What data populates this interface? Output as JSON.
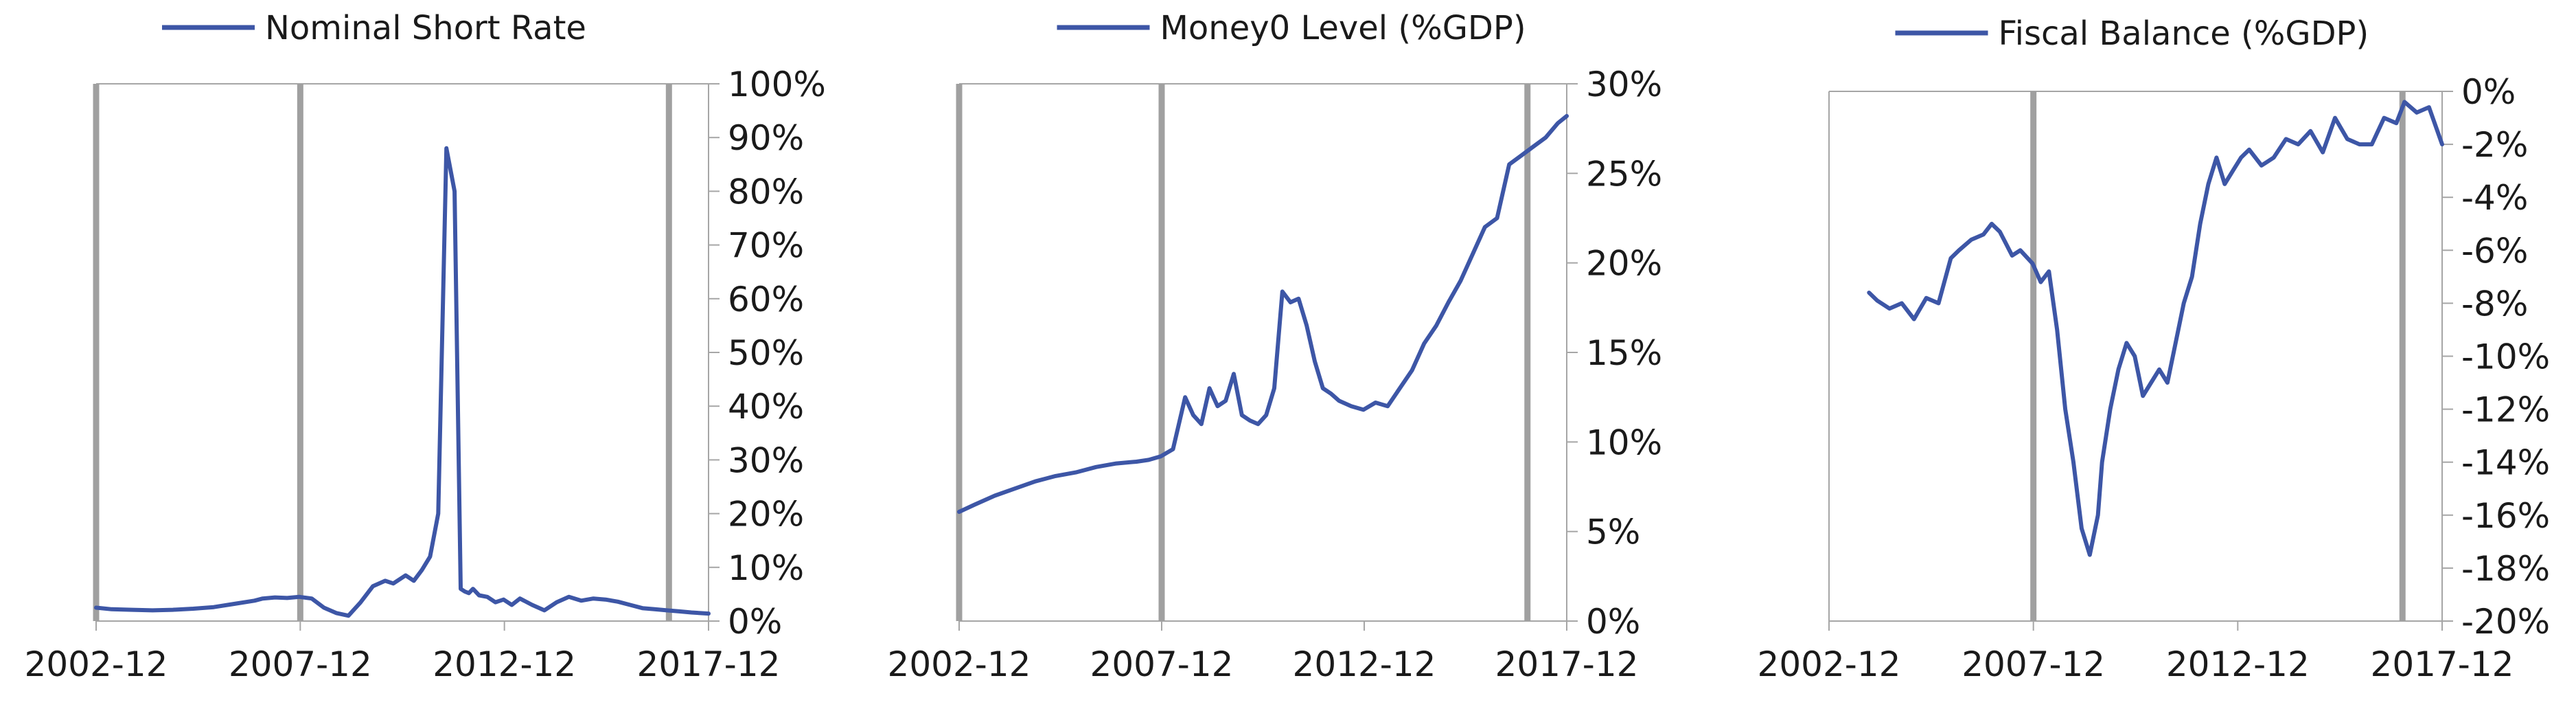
{
  "colors": {
    "series": "#3D56A6",
    "frame": "#a6a6a6",
    "recession_band": "#a0a0a0",
    "text": "#1a1a1a"
  },
  "chart_data": [
    {
      "type": "line",
      "title": "",
      "legend": [
        "Nominal Short Rate"
      ],
      "legend_placement": "top",
      "grid": false,
      "y_axis_side": "right",
      "x_ticks": [
        "2002-12",
        "2007-12",
        "2012-12",
        "2017-12"
      ],
      "x_range": [
        2002.92,
        2017.92
      ],
      "y_ticks": [
        "0%",
        "10%",
        "20%",
        "30%",
        "40%",
        "50%",
        "60%",
        "70%",
        "80%",
        "90%",
        "100%"
      ],
      "ylim": [
        0,
        100
      ],
      "y_unit": "%",
      "recession_markers": [
        2002.92,
        2007.92,
        2016.95
      ],
      "series": [
        {
          "name": "Nominal Short Rate",
          "x": [
            2002.92,
            2003.3,
            2003.8,
            2004.3,
            2004.8,
            2005.3,
            2005.8,
            2006.3,
            2006.8,
            2007.0,
            2007.3,
            2007.6,
            2007.9,
            2008.2,
            2008.5,
            2008.8,
            2009.1,
            2009.4,
            2009.7,
            2010.0,
            2010.2,
            2010.5,
            2010.7,
            2010.9,
            2011.1,
            2011.3,
            2011.5,
            2011.7,
            2011.85,
            2011.95,
            2012.05,
            2012.15,
            2012.3,
            2012.5,
            2012.7,
            2012.9,
            2013.1,
            2013.3,
            2013.6,
            2013.9,
            2014.2,
            2014.5,
            2014.8,
            2015.1,
            2015.4,
            2015.7,
            2016.0,
            2016.3,
            2016.6,
            2016.9,
            2017.2,
            2017.5,
            2017.92
          ],
          "y": [
            2.5,
            2.2,
            2.1,
            2.0,
            2.1,
            2.3,
            2.6,
            3.2,
            3.8,
            4.2,
            4.4,
            4.3,
            4.5,
            4.2,
            2.5,
            1.5,
            1.0,
            3.5,
            6.5,
            7.5,
            7.0,
            8.5,
            7.5,
            9.5,
            12,
            20,
            88,
            80,
            6.0,
            5.5,
            5.2,
            6.0,
            4.8,
            4.5,
            3.5,
            4.0,
            3.0,
            4.2,
            3.0,
            2.0,
            3.5,
            4.5,
            3.8,
            4.2,
            4.0,
            3.6,
            3.0,
            2.4,
            2.2,
            2.0,
            1.8,
            1.6,
            1.4
          ]
        }
      ]
    },
    {
      "type": "line",
      "title": "",
      "legend": [
        "Money0 Level (%GDP)"
      ],
      "legend_placement": "top",
      "grid": false,
      "y_axis_side": "right",
      "x_ticks": [
        "2002-12",
        "2007-12",
        "2012-12",
        "2017-12"
      ],
      "x_range": [
        2002.92,
        2017.92
      ],
      "y_ticks": [
        "0%",
        "5%",
        "10%",
        "15%",
        "20%",
        "25%",
        "30%"
      ],
      "ylim": [
        0,
        30
      ],
      "y_unit": "%",
      "recession_markers": [
        2002.92,
        2007.92,
        2016.95
      ],
      "series": [
        {
          "name": "Money0 Level (%GDP)",
          "x": [
            2002.92,
            2003.3,
            2003.8,
            2004.3,
            2004.8,
            2005.3,
            2005.8,
            2006.3,
            2006.8,
            2007.3,
            2007.6,
            2007.9,
            2008.2,
            2008.5,
            2008.7,
            2008.9,
            2009.1,
            2009.3,
            2009.5,
            2009.7,
            2009.9,
            2010.1,
            2010.3,
            2010.5,
            2010.7,
            2010.9,
            2011.1,
            2011.3,
            2011.5,
            2011.7,
            2011.9,
            2012.1,
            2012.3,
            2012.6,
            2012.9,
            2013.2,
            2013.5,
            2013.8,
            2014.1,
            2014.4,
            2014.7,
            2015.0,
            2015.3,
            2015.6,
            2015.9,
            2016.2,
            2016.5,
            2016.8,
            2017.1,
            2017.4,
            2017.7,
            2017.92
          ],
          "y": [
            6.1,
            6.5,
            7.0,
            7.4,
            7.8,
            8.1,
            8.3,
            8.6,
            8.8,
            8.9,
            9.0,
            9.2,
            9.6,
            12.5,
            11.5,
            11.0,
            13.0,
            12.0,
            12.3,
            13.8,
            11.5,
            11.2,
            11.0,
            11.5,
            13.0,
            18.4,
            17.8,
            18.0,
            16.5,
            14.5,
            13.0,
            12.7,
            12.3,
            12.0,
            11.8,
            12.2,
            12.0,
            13.0,
            14.0,
            15.5,
            16.5,
            17.8,
            19.0,
            20.5,
            22.0,
            22.5,
            25.5,
            26.0,
            26.5,
            27.0,
            27.8,
            28.2
          ]
        }
      ]
    },
    {
      "type": "line",
      "title": "",
      "legend": [
        "Fiscal Balance (%GDP)"
      ],
      "legend_placement": "top",
      "grid": false,
      "y_axis_side": "right",
      "x_ticks": [
        "2002-12",
        "2007-12",
        "2012-12",
        "2017-12"
      ],
      "x_range": [
        2002.92,
        2017.92
      ],
      "y_ticks": [
        "-20%",
        "-18%",
        "-16%",
        "-14%",
        "-12%",
        "-10%",
        "-8%",
        "-6%",
        "-4%",
        "-2%",
        "0%"
      ],
      "ylim": [
        -20,
        0
      ],
      "y_unit": "%",
      "recession_markers": [
        2007.92,
        2016.95
      ],
      "series": [
        {
          "name": "Fiscal Balance (%GDP)",
          "x": [
            2003.9,
            2004.1,
            2004.4,
            2004.7,
            2005.0,
            2005.3,
            2005.6,
            2005.9,
            2006.1,
            2006.4,
            2006.7,
            2006.9,
            2007.1,
            2007.4,
            2007.6,
            2007.9,
            2008.1,
            2008.3,
            2008.5,
            2008.7,
            2008.9,
            2009.1,
            2009.3,
            2009.5,
            2009.6,
            2009.8,
            2010.0,
            2010.2,
            2010.4,
            2010.6,
            2010.8,
            2011.0,
            2011.2,
            2011.4,
            2011.6,
            2011.8,
            2012.0,
            2012.2,
            2012.4,
            2012.6,
            2012.8,
            2013.0,
            2013.2,
            2013.5,
            2013.8,
            2014.1,
            2014.4,
            2014.7,
            2015.0,
            2015.3,
            2015.6,
            2015.9,
            2016.2,
            2016.5,
            2016.8,
            2017.0,
            2017.3,
            2017.6,
            2017.92
          ],
          "y": [
            -7.6,
            -7.9,
            -8.2,
            -8.0,
            -8.6,
            -7.8,
            -8.0,
            -6.3,
            -6.0,
            -5.6,
            -5.4,
            -5.0,
            -5.3,
            -6.2,
            -6.0,
            -6.5,
            -7.2,
            -6.8,
            -9.0,
            -12.0,
            -14.0,
            -16.5,
            -17.5,
            -16.0,
            -14.0,
            -12.0,
            -10.5,
            -9.5,
            -10.0,
            -11.5,
            -11.0,
            -10.5,
            -11.0,
            -9.5,
            -8.0,
            -7.0,
            -5.0,
            -3.5,
            -2.5,
            -3.5,
            -3.0,
            -2.5,
            -2.2,
            -2.8,
            -2.5,
            -1.8,
            -2.0,
            -1.5,
            -2.3,
            -1.0,
            -1.8,
            -2.0,
            -2.0,
            -1.0,
            -1.2,
            -0.4,
            -0.8,
            -0.6,
            -2.0
          ]
        }
      ]
    }
  ]
}
